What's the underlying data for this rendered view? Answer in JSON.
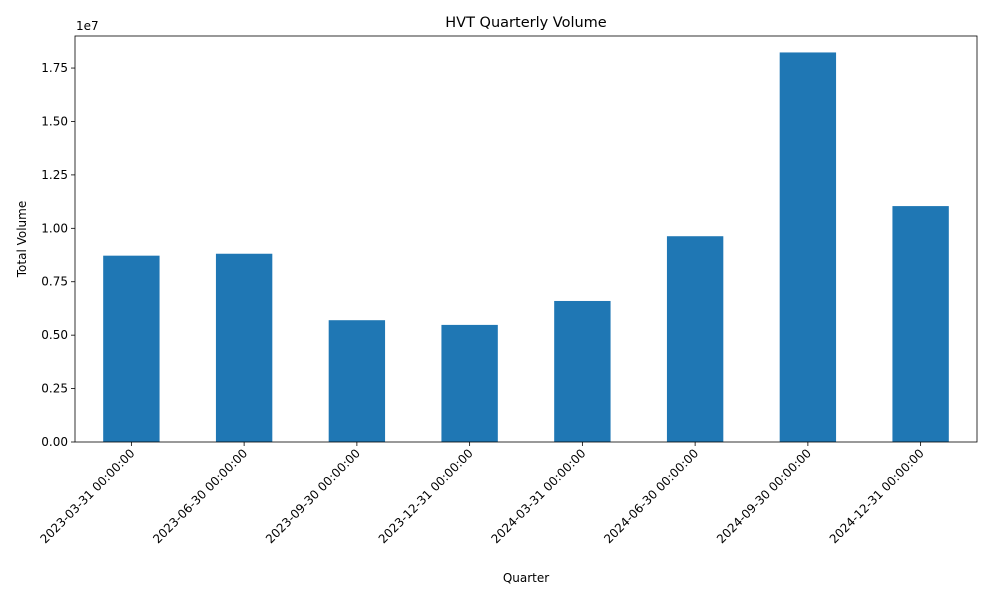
{
  "chart_data": {
    "type": "bar",
    "title": "HVT Quarterly Volume",
    "xlabel": "Quarter",
    "ylabel": "Total Volume",
    "y_offset_label": "1e7",
    "categories": [
      "2023-03-31 00:00:00",
      "2023-06-30 00:00:00",
      "2023-09-30 00:00:00",
      "2023-12-31 00:00:00",
      "2024-03-31 00:00:00",
      "2024-06-30 00:00:00",
      "2024-09-30 00:00:00",
      "2024-12-31 00:00:00"
    ],
    "values": [
      8720000,
      8810000,
      5700000,
      5480000,
      6600000,
      9630000,
      18230000,
      11040000
    ],
    "ylim": [
      0,
      19000000
    ],
    "yticks": [
      0,
      2500000,
      5000000,
      7500000,
      10000000,
      12500000,
      15000000,
      17500000
    ],
    "ytick_labels": [
      "0.00",
      "0.25",
      "0.50",
      "0.75",
      "1.00",
      "1.25",
      "1.50",
      "1.75"
    ],
    "bar_color": "#1f77b4",
    "grid": false,
    "legend": "none",
    "x_tick_rotation_deg": 45
  }
}
